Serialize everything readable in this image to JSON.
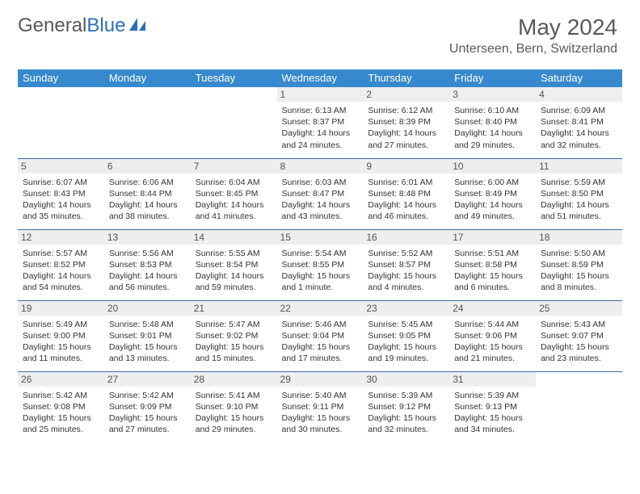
{
  "brand": {
    "part1": "General",
    "part2": "Blue"
  },
  "colors": {
    "header_bg": "#3789cd",
    "header_text": "#ffffff",
    "daynum_bg": "#eeeeee",
    "border": "#3a6fa8",
    "text": "#333333",
    "title": "#595959"
  },
  "title": "May 2024",
  "location": "Unterseen, Bern, Switzerland",
  "weekdays": [
    "Sunday",
    "Monday",
    "Tuesday",
    "Wednesday",
    "Thursday",
    "Friday",
    "Saturday"
  ],
  "cells": [
    {
      "day": "",
      "text": ""
    },
    {
      "day": "",
      "text": ""
    },
    {
      "day": "",
      "text": ""
    },
    {
      "day": "1",
      "sunrise": "6:13 AM",
      "sunset": "8:37 PM",
      "daylight": "14 hours and 24 minutes."
    },
    {
      "day": "2",
      "sunrise": "6:12 AM",
      "sunset": "8:39 PM",
      "daylight": "14 hours and 27 minutes."
    },
    {
      "day": "3",
      "sunrise": "6:10 AM",
      "sunset": "8:40 PM",
      "daylight": "14 hours and 29 minutes."
    },
    {
      "day": "4",
      "sunrise": "6:09 AM",
      "sunset": "8:41 PM",
      "daylight": "14 hours and 32 minutes."
    },
    {
      "day": "5",
      "sunrise": "6:07 AM",
      "sunset": "8:43 PM",
      "daylight": "14 hours and 35 minutes."
    },
    {
      "day": "6",
      "sunrise": "6:06 AM",
      "sunset": "8:44 PM",
      "daylight": "14 hours and 38 minutes."
    },
    {
      "day": "7",
      "sunrise": "6:04 AM",
      "sunset": "8:45 PM",
      "daylight": "14 hours and 41 minutes."
    },
    {
      "day": "8",
      "sunrise": "6:03 AM",
      "sunset": "8:47 PM",
      "daylight": "14 hours and 43 minutes."
    },
    {
      "day": "9",
      "sunrise": "6:01 AM",
      "sunset": "8:48 PM",
      "daylight": "14 hours and 46 minutes."
    },
    {
      "day": "10",
      "sunrise": "6:00 AM",
      "sunset": "8:49 PM",
      "daylight": "14 hours and 49 minutes."
    },
    {
      "day": "11",
      "sunrise": "5:59 AM",
      "sunset": "8:50 PM",
      "daylight": "14 hours and 51 minutes."
    },
    {
      "day": "12",
      "sunrise": "5:57 AM",
      "sunset": "8:52 PM",
      "daylight": "14 hours and 54 minutes."
    },
    {
      "day": "13",
      "sunrise": "5:56 AM",
      "sunset": "8:53 PM",
      "daylight": "14 hours and 56 minutes."
    },
    {
      "day": "14",
      "sunrise": "5:55 AM",
      "sunset": "8:54 PM",
      "daylight": "14 hours and 59 minutes."
    },
    {
      "day": "15",
      "sunrise": "5:54 AM",
      "sunset": "8:55 PM",
      "daylight": "15 hours and 1 minute."
    },
    {
      "day": "16",
      "sunrise": "5:52 AM",
      "sunset": "8:57 PM",
      "daylight": "15 hours and 4 minutes."
    },
    {
      "day": "17",
      "sunrise": "5:51 AM",
      "sunset": "8:58 PM",
      "daylight": "15 hours and 6 minutes."
    },
    {
      "day": "18",
      "sunrise": "5:50 AM",
      "sunset": "8:59 PM",
      "daylight": "15 hours and 8 minutes."
    },
    {
      "day": "19",
      "sunrise": "5:49 AM",
      "sunset": "9:00 PM",
      "daylight": "15 hours and 11 minutes."
    },
    {
      "day": "20",
      "sunrise": "5:48 AM",
      "sunset": "9:01 PM",
      "daylight": "15 hours and 13 minutes."
    },
    {
      "day": "21",
      "sunrise": "5:47 AM",
      "sunset": "9:02 PM",
      "daylight": "15 hours and 15 minutes."
    },
    {
      "day": "22",
      "sunrise": "5:46 AM",
      "sunset": "9:04 PM",
      "daylight": "15 hours and 17 minutes."
    },
    {
      "day": "23",
      "sunrise": "5:45 AM",
      "sunset": "9:05 PM",
      "daylight": "15 hours and 19 minutes."
    },
    {
      "day": "24",
      "sunrise": "5:44 AM",
      "sunset": "9:06 PM",
      "daylight": "15 hours and 21 minutes."
    },
    {
      "day": "25",
      "sunrise": "5:43 AM",
      "sunset": "9:07 PM",
      "daylight": "15 hours and 23 minutes."
    },
    {
      "day": "26",
      "sunrise": "5:42 AM",
      "sunset": "9:08 PM",
      "daylight": "15 hours and 25 minutes."
    },
    {
      "day": "27",
      "sunrise": "5:42 AM",
      "sunset": "9:09 PM",
      "daylight": "15 hours and 27 minutes."
    },
    {
      "day": "28",
      "sunrise": "5:41 AM",
      "sunset": "9:10 PM",
      "daylight": "15 hours and 29 minutes."
    },
    {
      "day": "29",
      "sunrise": "5:40 AM",
      "sunset": "9:11 PM",
      "daylight": "15 hours and 30 minutes."
    },
    {
      "day": "30",
      "sunrise": "5:39 AM",
      "sunset": "9:12 PM",
      "daylight": "15 hours and 32 minutes."
    },
    {
      "day": "31",
      "sunrise": "5:39 AM",
      "sunset": "9:13 PM",
      "daylight": "15 hours and 34 minutes."
    },
    {
      "day": "",
      "text": ""
    }
  ],
  "labels": {
    "sunrise": "Sunrise:",
    "sunset": "Sunset:",
    "daylight": "Daylight:"
  }
}
